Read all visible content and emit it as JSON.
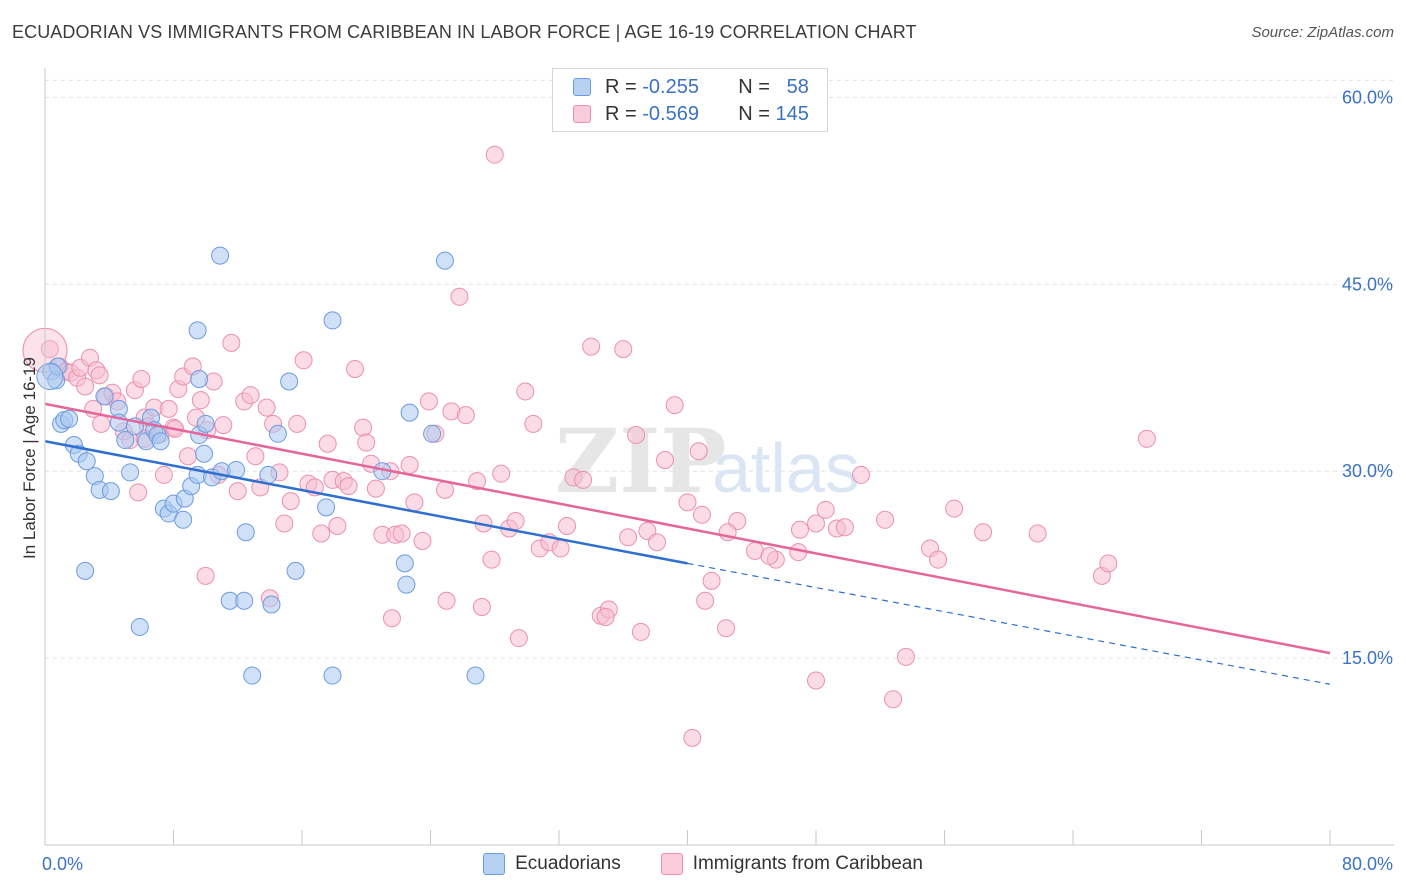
{
  "title": "ECUADORIAN VS IMMIGRANTS FROM CARIBBEAN IN LABOR FORCE | AGE 16-19 CORRELATION CHART",
  "source": "Source: ZipAtlas.com",
  "colors": {
    "blue_fill": "#a9c8f0",
    "blue_stroke": "#6b9be0",
    "blue_line": "#2f6fcf",
    "pink_fill": "#f7bfd2",
    "pink_stroke": "#ec8fb0",
    "pink_line": "#e4669a",
    "axis_text": "#3a72c4",
    "grid": "#e2e2e2"
  },
  "legend_top": [
    {
      "r_label": "R =",
      "r_value": "-0.255",
      "n_label": "N =",
      "n_value": "58"
    },
    {
      "r_label": "R =",
      "r_value": "-0.569",
      "n_label": "N =",
      "n_value": "145"
    }
  ],
  "chart_data": {
    "type": "scatter",
    "title": "ECUADORIAN VS IMMIGRANTS FROM CARIBBEAN IN LABOR FORCE | AGE 16-19 CORRELATION CHART",
    "xlabel": "",
    "ylabel": "In Labor Force | Age 16-19",
    "xlim": [
      0,
      80
    ],
    "ylim": [
      0,
      63
    ],
    "x_tick_labels": [
      "0.0%",
      "80.0%"
    ],
    "y_ticks": [
      15,
      30,
      45,
      60
    ],
    "y_tick_labels": [
      "15.0%",
      "30.0%",
      "45.0%",
      "60.0%"
    ],
    "grid": true,
    "legend_position": "bottom",
    "watermark": "ZIPatlas",
    "series": [
      {
        "name": "Ecuadorians",
        "color": "blue",
        "trend": {
          "x": [
            0,
            40
          ],
          "y": [
            32.4,
            22.6
          ],
          "dashed_to": [
            80,
            12.9
          ]
        },
        "points": [
          [
            0.4,
            38.0
          ],
          [
            0.7,
            37.3
          ],
          [
            0.8,
            38.4
          ],
          [
            1.0,
            33.8
          ],
          [
            1.2,
            34.1
          ],
          [
            1.5,
            34.2
          ],
          [
            1.8,
            32.1
          ],
          [
            2.1,
            31.4
          ],
          [
            2.6,
            30.8
          ],
          [
            3.1,
            29.6
          ],
          [
            3.4,
            28.5
          ],
          [
            4.1,
            28.4
          ],
          [
            3.7,
            36.0
          ],
          [
            4.6,
            35.0
          ],
          [
            4.6,
            33.9
          ],
          [
            5.0,
            32.5
          ],
          [
            5.3,
            29.9
          ],
          [
            5.6,
            33.6
          ],
          [
            6.3,
            32.4
          ],
          [
            6.6,
            34.3
          ],
          [
            6.8,
            33.3
          ],
          [
            7.0,
            32.9
          ],
          [
            7.2,
            32.4
          ],
          [
            7.4,
            27.0
          ],
          [
            7.7,
            26.6
          ],
          [
            8.0,
            27.4
          ],
          [
            8.6,
            26.1
          ],
          [
            8.7,
            27.8
          ],
          [
            9.1,
            28.8
          ],
          [
            9.5,
            29.7
          ],
          [
            9.6,
            32.9
          ],
          [
            9.9,
            31.4
          ],
          [
            10.0,
            33.8
          ],
          [
            10.4,
            29.5
          ],
          [
            11.0,
            30.0
          ],
          [
            11.9,
            30.1
          ],
          [
            9.6,
            37.4
          ],
          [
            9.5,
            41.3
          ],
          [
            10.9,
            47.3
          ],
          [
            12.5,
            25.1
          ],
          [
            13.9,
            29.7
          ],
          [
            14.5,
            33.0
          ],
          [
            15.2,
            37.2
          ],
          [
            17.5,
            27.1
          ],
          [
            17.9,
            42.1
          ],
          [
            21.0,
            30.0
          ],
          [
            22.7,
            34.7
          ],
          [
            24.1,
            33.0
          ],
          [
            24.9,
            46.9
          ],
          [
            22.4,
            22.6
          ],
          [
            22.5,
            20.9
          ],
          [
            15.6,
            22.0
          ],
          [
            11.5,
            19.6
          ],
          [
            12.4,
            19.6
          ],
          [
            14.1,
            19.3
          ],
          [
            2.5,
            22.0
          ],
          [
            5.9,
            17.5
          ],
          [
            12.9,
            13.6
          ],
          [
            17.9,
            13.6
          ],
          [
            26.8,
            13.6
          ]
        ]
      },
      {
        "name": "Immigrants from Caribbean",
        "color": "pink",
        "trend": {
          "x": [
            0,
            80
          ],
          "y": [
            35.4,
            15.4
          ]
        },
        "points": [
          [
            0.3,
            39.8
          ],
          [
            0.9,
            38.4
          ],
          [
            1.3,
            38.0
          ],
          [
            1.6,
            37.9
          ],
          [
            2.0,
            37.5
          ],
          [
            2.2,
            38.3
          ],
          [
            2.8,
            39.1
          ],
          [
            3.0,
            35.0
          ],
          [
            3.2,
            38.1
          ],
          [
            3.5,
            33.8
          ],
          [
            3.8,
            36.0
          ],
          [
            4.2,
            36.3
          ],
          [
            4.5,
            35.6
          ],
          [
            4.9,
            33.2
          ],
          [
            5.3,
            32.5
          ],
          [
            5.6,
            36.5
          ],
          [
            6.0,
            37.4
          ],
          [
            6.2,
            34.3
          ],
          [
            6.4,
            33.6
          ],
          [
            6.8,
            35.1
          ],
          [
            7.2,
            33.0
          ],
          [
            7.4,
            29.7
          ],
          [
            7.7,
            35.0
          ],
          [
            8.0,
            33.5
          ],
          [
            8.3,
            36.6
          ],
          [
            8.6,
            37.6
          ],
          [
            8.9,
            31.2
          ],
          [
            9.2,
            38.4
          ],
          [
            9.4,
            34.3
          ],
          [
            9.7,
            35.7
          ],
          [
            10.1,
            33.3
          ],
          [
            10.5,
            37.2
          ],
          [
            10.8,
            29.7
          ],
          [
            11.1,
            33.7
          ],
          [
            11.6,
            40.3
          ],
          [
            12.0,
            28.4
          ],
          [
            12.4,
            35.6
          ],
          [
            12.8,
            36.1
          ],
          [
            13.1,
            31.2
          ],
          [
            13.4,
            28.7
          ],
          [
            13.8,
            35.1
          ],
          [
            14.2,
            33.8
          ],
          [
            14.6,
            29.9
          ],
          [
            14.9,
            25.8
          ],
          [
            15.3,
            27.6
          ],
          [
            15.7,
            33.8
          ],
          [
            16.1,
            38.9
          ],
          [
            16.4,
            29.0
          ],
          [
            16.8,
            28.7
          ],
          [
            17.2,
            25.0
          ],
          [
            17.6,
            32.2
          ],
          [
            17.9,
            29.3
          ],
          [
            18.2,
            25.6
          ],
          [
            18.6,
            29.2
          ],
          [
            18.9,
            28.8
          ],
          [
            19.3,
            38.2
          ],
          [
            19.8,
            33.5
          ],
          [
            20.0,
            32.3
          ],
          [
            20.3,
            30.6
          ],
          [
            20.6,
            28.6
          ],
          [
            21.0,
            24.9
          ],
          [
            21.5,
            30.0
          ],
          [
            21.8,
            24.9
          ],
          [
            22.2,
            25.0
          ],
          [
            22.7,
            30.5
          ],
          [
            23.0,
            27.5
          ],
          [
            23.5,
            24.4
          ],
          [
            23.9,
            35.6
          ],
          [
            24.3,
            33.0
          ],
          [
            24.9,
            28.5
          ],
          [
            25.3,
            34.8
          ],
          [
            25.8,
            44.0
          ],
          [
            26.2,
            34.5
          ],
          [
            26.9,
            29.2
          ],
          [
            27.3,
            25.8
          ],
          [
            27.8,
            22.9
          ],
          [
            28.4,
            29.8
          ],
          [
            28.9,
            25.4
          ],
          [
            29.3,
            26.0
          ],
          [
            29.9,
            36.4
          ],
          [
            30.4,
            33.8
          ],
          [
            30.8,
            23.8
          ],
          [
            31.4,
            24.3
          ],
          [
            32.1,
            23.8
          ],
          [
            32.5,
            25.6
          ],
          [
            32.9,
            29.5
          ],
          [
            33.5,
            29.3
          ],
          [
            34.0,
            40.0
          ],
          [
            34.6,
            18.4
          ],
          [
            35.1,
            18.9
          ],
          [
            36.0,
            39.8
          ],
          [
            36.3,
            24.7
          ],
          [
            36.8,
            32.9
          ],
          [
            37.5,
            25.2
          ],
          [
            38.1,
            24.3
          ],
          [
            38.6,
            30.9
          ],
          [
            39.2,
            35.3
          ],
          [
            40.0,
            27.5
          ],
          [
            40.7,
            31.6
          ],
          [
            41.1,
            19.6
          ],
          [
            41.5,
            21.2
          ],
          [
            42.4,
            17.4
          ],
          [
            43.1,
            26.0
          ],
          [
            44.2,
            23.6
          ],
          [
            45.5,
            22.9
          ],
          [
            46.9,
            23.5
          ],
          [
            48.0,
            25.8
          ],
          [
            48.6,
            26.9
          ],
          [
            49.3,
            25.4
          ],
          [
            49.8,
            25.5
          ],
          [
            50.8,
            29.7
          ],
          [
            52.3,
            26.1
          ],
          [
            53.6,
            15.1
          ],
          [
            55.1,
            23.8
          ],
          [
            55.6,
            22.9
          ],
          [
            56.6,
            27.0
          ],
          [
            58.4,
            25.1
          ],
          [
            61.8,
            25.0
          ],
          [
            65.8,
            21.6
          ],
          [
            66.2,
            22.6
          ],
          [
            68.6,
            32.6
          ],
          [
            28.0,
            55.4
          ],
          [
            6.2,
            32.6
          ],
          [
            8.1,
            33.4
          ],
          [
            14.0,
            19.8
          ],
          [
            21.6,
            18.2
          ],
          [
            25.0,
            19.6
          ],
          [
            27.2,
            19.1
          ],
          [
            29.5,
            16.6
          ],
          [
            34.9,
            18.3
          ],
          [
            37.1,
            17.1
          ],
          [
            45.1,
            23.2
          ],
          [
            48.0,
            13.2
          ],
          [
            52.8,
            11.7
          ],
          [
            40.3,
            8.6
          ],
          [
            40.9,
            26.5
          ],
          [
            10.0,
            21.6
          ],
          [
            2.5,
            36.8
          ],
          [
            3.4,
            37.7
          ],
          [
            5.8,
            28.3
          ],
          [
            42.5,
            25.1
          ],
          [
            47.0,
            25.3
          ]
        ]
      }
    ]
  },
  "legend_bottom": [
    {
      "label": "Ecuadorians",
      "color": "blue"
    },
    {
      "label": "Immigrants from Caribbean",
      "color": "pink"
    }
  ]
}
